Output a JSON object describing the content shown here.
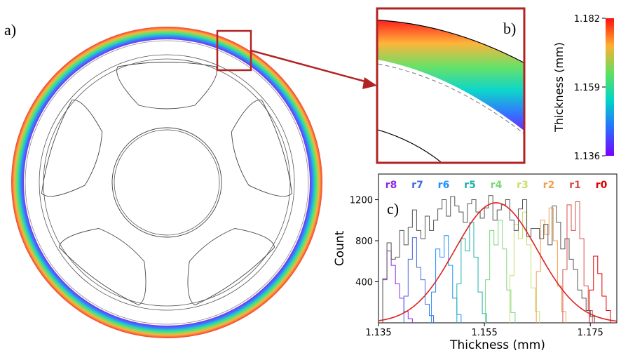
{
  "panel_labels": {
    "a": "a)",
    "b": "b)",
    "c": "c)"
  },
  "colors": {
    "ring_outer": "#e8503a",
    "ring_inner": "#7a2cf0",
    "zoom_box": "#b22222",
    "fit_curve": "#e02020",
    "total_hist": "#555555"
  },
  "colorbar": {
    "label": "Thickness (mm)",
    "ticks": [
      "1.182",
      "1.159",
      "1.136"
    ],
    "min": 1.136,
    "max": 1.182
  },
  "chart_data": {
    "type": "bar",
    "subtype": "histogram",
    "xlabel": "Thickness (mm)",
    "ylabel": "Count",
    "xlim": [
      1.135,
      1.18
    ],
    "ylim": [
      0,
      1450
    ],
    "xticks": [
      "1.135",
      "1.155",
      "1.175"
    ],
    "yticks": [
      "400",
      "800",
      "1200"
    ],
    "legend_placement": "top",
    "bin_width": 0.0008,
    "series": [
      {
        "name": "r8",
        "color": "#8a2be2",
        "start": 1.1358,
        "counts": [
          420,
          700,
          560,
          380,
          240,
          110,
          40
        ]
      },
      {
        "name": "r7",
        "color": "#4169e1",
        "start": 1.1398,
        "counts": [
          260,
          620,
          830,
          540,
          420,
          180,
          70
        ]
      },
      {
        "name": "r6",
        "color": "#1e90ff",
        "start": 1.145,
        "counts": [
          300,
          720,
          640,
          850,
          560,
          240,
          80
        ]
      },
      {
        "name": "r5",
        "color": "#20b2aa",
        "start": 1.1498,
        "counts": [
          380,
          820,
          700,
          980,
          640,
          300,
          90
        ]
      },
      {
        "name": "r4",
        "color": "#7cd67c",
        "start": 1.1552,
        "counts": [
          420,
          900,
          760,
          1000,
          720,
          320,
          100
        ]
      },
      {
        "name": "r3",
        "color": "#c8e06a",
        "start": 1.1598,
        "counts": [
          460,
          960,
          820,
          1080,
          760,
          340,
          110
        ]
      },
      {
        "name": "r2",
        "color": "#f0a050",
        "start": 1.1648,
        "counts": [
          500,
          1000,
          860,
          1120,
          800,
          360,
          110
        ]
      },
      {
        "name": "r1",
        "color": "#d8504a",
        "start": 1.1698,
        "counts": [
          520,
          1150,
          900,
          1180,
          820,
          360,
          120
        ]
      },
      {
        "name": "r0",
        "color": "#e00000",
        "start": 1.1748,
        "counts": [
          320,
          650,
          480,
          260,
          120
        ]
      }
    ],
    "total": {
      "start": 1.1358,
      "counts": [
        430,
        780,
        620,
        640,
        900,
        760,
        930,
        1100,
        900,
        820,
        1040,
        900,
        1000,
        1110,
        1200,
        1040,
        1230,
        1140,
        1080,
        980,
        1160,
        1200,
        1080,
        1020,
        1120,
        1240,
        1000,
        1100,
        1150,
        1200,
        1000,
        900,
        1110,
        1200,
        840,
        920,
        920,
        820,
        960,
        760,
        1140,
        980,
        720,
        820,
        620,
        520,
        320,
        240,
        120,
        60
      ]
    },
    "fit": {
      "mean": 1.1572,
      "sd": 0.0078,
      "peak": 1170
    }
  }
}
